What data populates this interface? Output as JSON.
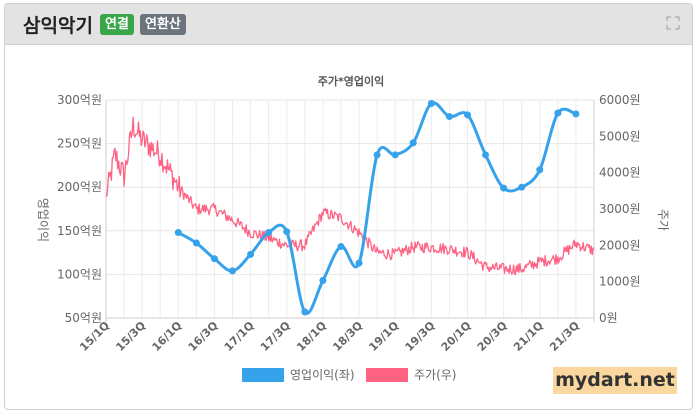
{
  "header": {
    "company": "삼익악기",
    "badge_consolidated": "연결",
    "badge_period": "연환산"
  },
  "watermark": "mydart.net",
  "colors": {
    "operating_income": "#36a2eb",
    "stock_price": "#ff6384",
    "badge_green": "#3aa64a",
    "badge_gray": "#6b747c"
  },
  "chart_data": {
    "type": "line",
    "title": "주가*영업이익",
    "legend_position": "bottom",
    "grid": true,
    "x_tick_labels": [
      "15/1Q",
      "15/3Q",
      "16/1Q",
      "16/3Q",
      "17/1Q",
      "17/3Q",
      "18/1Q",
      "18/3Q",
      "19/1Q",
      "19/3Q",
      "20/1Q",
      "20/3Q",
      "21/1Q",
      "21/3Q"
    ],
    "y_left": {
      "label": "영업이익",
      "ylim": [
        50,
        300
      ],
      "ticks": [
        "50억원",
        "100억원",
        "150억원",
        "200억원",
        "250억원",
        "300억원"
      ]
    },
    "y_right": {
      "label": "주가",
      "ylim": [
        0,
        6000
      ],
      "ticks": [
        "0원",
        "1000원",
        "2000원",
        "3000원",
        "4000원",
        "5000원",
        "6000원"
      ]
    },
    "series": [
      {
        "name": "영업이익(좌)",
        "axis": "left",
        "unit": "억원",
        "x": [
          "16/1Q",
          "16/2Q",
          "16/3Q",
          "16/4Q",
          "17/1Q",
          "17/2Q",
          "17/3Q",
          "17/4Q",
          "18/1Q",
          "18/2Q",
          "18/3Q",
          "18/4Q",
          "19/1Q",
          "19/2Q",
          "19/3Q",
          "19/4Q",
          "20/1Q",
          "20/2Q",
          "20/3Q",
          "20/4Q",
          "21/1Q",
          "21/2Q",
          "21/3Q"
        ],
        "values": [
          148,
          136,
          118,
          104,
          123,
          148,
          149,
          57,
          93,
          132,
          113,
          237,
          237,
          251,
          296,
          281,
          283,
          237,
          199,
          200,
          220,
          285,
          284
        ]
      },
      {
        "name": "주가(우)",
        "axis": "right",
        "unit": "원",
        "anchors": [
          [
            "15/1Q",
            3300
          ],
          [
            "15/1Q+",
            4500
          ],
          [
            "15/2Q",
            3900
          ],
          [
            "15/2Q+",
            5300
          ],
          [
            "15/3Q",
            4900
          ],
          [
            "15/4Q",
            4500
          ],
          [
            "16/1Q",
            3600
          ],
          [
            "16/2Q",
            3000
          ],
          [
            "16/3Q",
            3000
          ],
          [
            "16/4Q",
            2700
          ],
          [
            "17/1Q",
            2350
          ],
          [
            "17/2Q",
            2200
          ],
          [
            "17/3Q",
            2000
          ],
          [
            "17/4Q",
            2000
          ],
          [
            "18/1Q",
            2900
          ],
          [
            "18/2Q",
            2750
          ],
          [
            "18/3Q",
            2350
          ],
          [
            "18/4Q",
            1800
          ],
          [
            "19/1Q",
            1750
          ],
          [
            "19/2Q",
            1950
          ],
          [
            "19/3Q",
            1950
          ],
          [
            "19/4Q",
            1900
          ],
          [
            "20/1Q",
            1800
          ],
          [
            "20/2Q",
            1400
          ],
          [
            "20/3Q",
            1350
          ],
          [
            "20/4Q",
            1350
          ],
          [
            "21/1Q",
            1550
          ],
          [
            "21/2Q",
            1650
          ],
          [
            "21/3Q",
            2050
          ],
          [
            "21/4Q",
            1850
          ]
        ]
      }
    ]
  }
}
